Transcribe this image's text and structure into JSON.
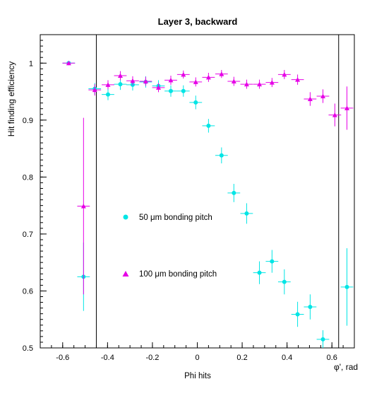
{
  "chart_data": {
    "type": "scatter",
    "title": "Layer 3, backward",
    "xlabel": "Phi hits",
    "xlabel_corner": "φ', rad",
    "ylabel": "Hit finding efficiency",
    "xlim": [
      -0.7,
      0.7
    ],
    "ylim": [
      0.5,
      1.05
    ],
    "x_ticks": [
      -0.6,
      -0.4,
      -0.2,
      0,
      0.2,
      0.4,
      0.6
    ],
    "x_tick_labels": [
      "-0.6",
      "-0.4",
      "-0.2",
      "0",
      "0.2",
      "0.4",
      "0.6"
    ],
    "y_ticks": [
      0.5,
      0.6,
      0.7,
      0.8,
      0.9,
      1.0
    ],
    "y_tick_labels": [
      "0.5",
      "0.6",
      "0.7",
      "0.8",
      "0.9",
      "1"
    ],
    "vertical_lines": [
      -0.45,
      0.63
    ],
    "grid": false,
    "legend_position": "inside-center-left",
    "series": [
      {
        "name": "50 μm bonding pitch",
        "marker": "circle",
        "color": "#00e5e5",
        "points": [
          {
            "x": -0.573,
            "y": 1.0,
            "yerr": 0.0
          },
          {
            "x": -0.507,
            "y": 0.625,
            "yerr": 0.06
          },
          {
            "x": -0.457,
            "y": 0.955,
            "yerr": 0.01
          },
          {
            "x": -0.398,
            "y": 0.945,
            "yerr": 0.01
          },
          {
            "x": -0.343,
            "y": 0.963,
            "yerr": 0.01
          },
          {
            "x": -0.288,
            "y": 0.962,
            "yerr": 0.01
          },
          {
            "x": -0.23,
            "y": 0.967,
            "yerr": 0.01
          },
          {
            "x": -0.173,
            "y": 0.96,
            "yerr": 0.01
          },
          {
            "x": -0.118,
            "y": 0.951,
            "yerr": 0.01
          },
          {
            "x": -0.062,
            "y": 0.951,
            "yerr": 0.01
          },
          {
            "x": -0.007,
            "y": 0.931,
            "yerr": 0.012
          },
          {
            "x": 0.05,
            "y": 0.89,
            "yerr": 0.012
          },
          {
            "x": 0.108,
            "y": 0.838,
            "yerr": 0.014
          },
          {
            "x": 0.163,
            "y": 0.772,
            "yerr": 0.016
          },
          {
            "x": 0.22,
            "y": 0.736,
            "yerr": 0.018
          },
          {
            "x": 0.277,
            "y": 0.632,
            "yerr": 0.02
          },
          {
            "x": 0.333,
            "y": 0.652,
            "yerr": 0.02
          },
          {
            "x": 0.388,
            "y": 0.616,
            "yerr": 0.022
          },
          {
            "x": 0.447,
            "y": 0.559,
            "yerr": 0.022
          },
          {
            "x": 0.503,
            "y": 0.572,
            "yerr": 0.022
          },
          {
            "x": 0.56,
            "y": 0.515,
            "yerr": 0.016
          },
          {
            "x": 0.667,
            "y": 0.607,
            "yerr": 0.068
          }
        ]
      },
      {
        "name": "100 μm bonding pitch",
        "marker": "triangle",
        "color": "#e600e6",
        "points": [
          {
            "x": -0.573,
            "y": 1.0,
            "yerr": 0.0
          },
          {
            "x": -0.507,
            "y": 0.749,
            "yerr": 0.155
          },
          {
            "x": -0.457,
            "y": 0.953,
            "yerr": 0.01
          },
          {
            "x": -0.398,
            "y": 0.962,
            "yerr": 0.008
          },
          {
            "x": -0.343,
            "y": 0.978,
            "yerr": 0.008
          },
          {
            "x": -0.288,
            "y": 0.969,
            "yerr": 0.008
          },
          {
            "x": -0.23,
            "y": 0.968,
            "yerr": 0.008
          },
          {
            "x": -0.173,
            "y": 0.957,
            "yerr": 0.008
          },
          {
            "x": -0.118,
            "y": 0.97,
            "yerr": 0.008
          },
          {
            "x": -0.062,
            "y": 0.98,
            "yerr": 0.007
          },
          {
            "x": -0.007,
            "y": 0.967,
            "yerr": 0.008
          },
          {
            "x": 0.05,
            "y": 0.975,
            "yerr": 0.008
          },
          {
            "x": 0.108,
            "y": 0.981,
            "yerr": 0.007
          },
          {
            "x": 0.163,
            "y": 0.968,
            "yerr": 0.008
          },
          {
            "x": 0.22,
            "y": 0.963,
            "yerr": 0.008
          },
          {
            "x": 0.277,
            "y": 0.963,
            "yerr": 0.008
          },
          {
            "x": 0.333,
            "y": 0.966,
            "yerr": 0.008
          },
          {
            "x": 0.388,
            "y": 0.98,
            "yerr": 0.008
          },
          {
            "x": 0.447,
            "y": 0.971,
            "yerr": 0.009
          },
          {
            "x": 0.503,
            "y": 0.937,
            "yerr": 0.012
          },
          {
            "x": 0.56,
            "y": 0.942,
            "yerr": 0.012
          },
          {
            "x": 0.613,
            "y": 0.909,
            "yerr": 0.02
          },
          {
            "x": 0.667,
            "y": 0.921,
            "yerr": 0.038
          }
        ]
      }
    ]
  }
}
